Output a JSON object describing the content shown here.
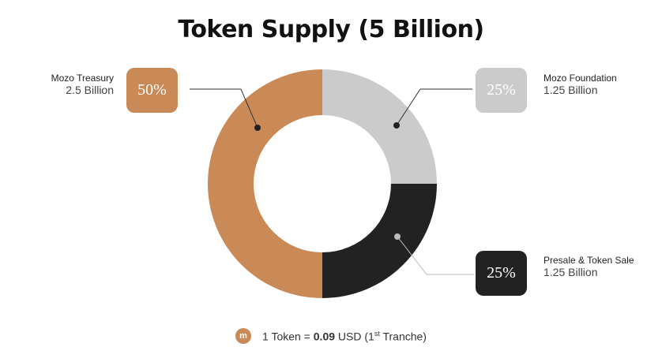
{
  "chart_data": {
    "type": "pie",
    "title": "Token Supply (5 Billion)",
    "donut": true,
    "slices": [
      {
        "name": "Mozo Foundation",
        "value": 25,
        "label": "25%",
        "amount": "1.25 Billion",
        "color": "#cbcbcb"
      },
      {
        "name": "Presale & Token Sale",
        "value": 25,
        "label": "25%",
        "amount": "1.25 Billion",
        "color": "#222222"
      },
      {
        "name": "Mozo Treasury",
        "value": 50,
        "label": "50%",
        "amount": "2.5 Billion",
        "color": "#c98a58"
      }
    ]
  },
  "footer": {
    "icon": "mozo-coin-icon",
    "coin_letter": "m",
    "prefix": "1 Token = ",
    "price": "0.09",
    "unit": " USD (1",
    "sup": "st",
    "suffix": " Tranche)"
  }
}
